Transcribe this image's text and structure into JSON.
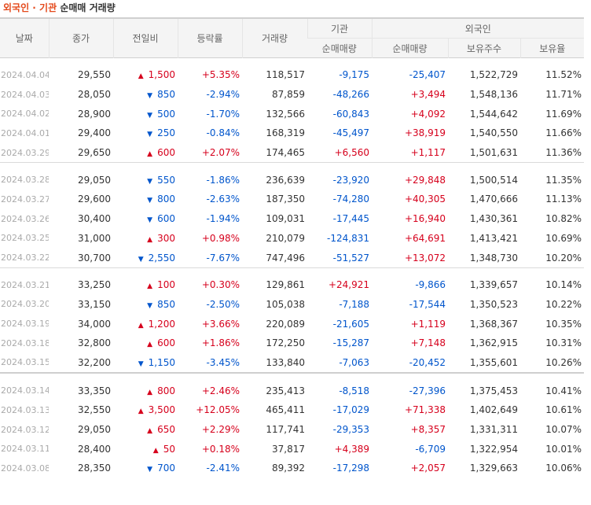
{
  "title": {
    "highlight": "외국인 · 기관",
    "rest": "순매매 거래량"
  },
  "headers": {
    "date": "날짜",
    "close": "종가",
    "change": "전일비",
    "rate": "등락률",
    "volume": "거래량",
    "inst": "기관",
    "foreign": "외국인",
    "inst_net": "순매매량",
    "foreign_net": "순매매량",
    "holdings": "보유주수",
    "ratio": "보유율"
  },
  "colors": {
    "up": "#d6001c",
    "down": "#0055cc",
    "title_accent": "#e4491b"
  },
  "icons": {
    "up": "up-triangle-icon",
    "down": "down-triangle-icon"
  },
  "groups": [
    [
      {
        "date": "2024.04.04",
        "close": "29,550",
        "dir": "up",
        "change": "1,500",
        "rate": "+5.35%",
        "volume": "118,517",
        "inst": "-9,175",
        "foreign": "-25,407",
        "holdings": "1,522,729",
        "ratio": "11.52%"
      },
      {
        "date": "2024.04.03",
        "close": "28,050",
        "dir": "down",
        "change": "850",
        "rate": "-2.94%",
        "volume": "87,859",
        "inst": "-48,266",
        "foreign": "+3,494",
        "holdings": "1,548,136",
        "ratio": "11.71%"
      },
      {
        "date": "2024.04.02",
        "close": "28,900",
        "dir": "down",
        "change": "500",
        "rate": "-1.70%",
        "volume": "132,566",
        "inst": "-60,843",
        "foreign": "+4,092",
        "holdings": "1,544,642",
        "ratio": "11.69%"
      },
      {
        "date": "2024.04.01",
        "close": "29,400",
        "dir": "down",
        "change": "250",
        "rate": "-0.84%",
        "volume": "168,319",
        "inst": "-45,497",
        "foreign": "+38,919",
        "holdings": "1,540,550",
        "ratio": "11.66%"
      },
      {
        "date": "2024.03.29",
        "close": "29,650",
        "dir": "up",
        "change": "600",
        "rate": "+2.07%",
        "volume": "174,465",
        "inst": "+6,560",
        "foreign": "+1,117",
        "holdings": "1,501,631",
        "ratio": "11.36%"
      }
    ],
    [
      {
        "date": "2024.03.28",
        "close": "29,050",
        "dir": "down",
        "change": "550",
        "rate": "-1.86%",
        "volume": "236,639",
        "inst": "-23,920",
        "foreign": "+29,848",
        "holdings": "1,500,514",
        "ratio": "11.35%"
      },
      {
        "date": "2024.03.27",
        "close": "29,600",
        "dir": "down",
        "change": "800",
        "rate": "-2.63%",
        "volume": "187,350",
        "inst": "-74,280",
        "foreign": "+40,305",
        "holdings": "1,470,666",
        "ratio": "11.13%"
      },
      {
        "date": "2024.03.26",
        "close": "30,400",
        "dir": "down",
        "change": "600",
        "rate": "-1.94%",
        "volume": "109,031",
        "inst": "-17,445",
        "foreign": "+16,940",
        "holdings": "1,430,361",
        "ratio": "10.82%"
      },
      {
        "date": "2024.03.25",
        "close": "31,000",
        "dir": "up",
        "change": "300",
        "rate": "+0.98%",
        "volume": "210,079",
        "inst": "-124,831",
        "foreign": "+64,691",
        "holdings": "1,413,421",
        "ratio": "10.69%"
      },
      {
        "date": "2024.03.22",
        "close": "30,700",
        "dir": "down",
        "change": "2,550",
        "rate": "-7.67%",
        "volume": "747,496",
        "inst": "-51,527",
        "foreign": "+13,072",
        "holdings": "1,348,730",
        "ratio": "10.20%"
      }
    ],
    [
      {
        "date": "2024.03.21",
        "close": "33,250",
        "dir": "up",
        "change": "100",
        "rate": "+0.30%",
        "volume": "129,861",
        "inst": "+24,921",
        "foreign": "-9,866",
        "holdings": "1,339,657",
        "ratio": "10.14%"
      },
      {
        "date": "2024.03.20",
        "close": "33,150",
        "dir": "down",
        "change": "850",
        "rate": "-2.50%",
        "volume": "105,038",
        "inst": "-7,188",
        "foreign": "-17,544",
        "holdings": "1,350,523",
        "ratio": "10.22%"
      },
      {
        "date": "2024.03.19",
        "close": "34,000",
        "dir": "up",
        "change": "1,200",
        "rate": "+3.66%",
        "volume": "220,089",
        "inst": "-21,605",
        "foreign": "+1,119",
        "holdings": "1,368,367",
        "ratio": "10.35%"
      },
      {
        "date": "2024.03.18",
        "close": "32,800",
        "dir": "up",
        "change": "600",
        "rate": "+1.86%",
        "volume": "172,250",
        "inst": "-15,287",
        "foreign": "+7,148",
        "holdings": "1,362,915",
        "ratio": "10.31%"
      },
      {
        "date": "2024.03.15",
        "close": "32,200",
        "dir": "down",
        "change": "1,150",
        "rate": "-3.45%",
        "volume": "133,840",
        "inst": "-7,063",
        "foreign": "-20,452",
        "holdings": "1,355,601",
        "ratio": "10.26%"
      }
    ],
    [
      {
        "date": "2024.03.14",
        "close": "33,350",
        "dir": "up",
        "change": "800",
        "rate": "+2.46%",
        "volume": "235,413",
        "inst": "-8,518",
        "foreign": "-27,396",
        "holdings": "1,375,453",
        "ratio": "10.41%"
      },
      {
        "date": "2024.03.13",
        "close": "32,550",
        "dir": "up",
        "change": "3,500",
        "rate": "+12.05%",
        "volume": "465,411",
        "inst": "-17,029",
        "foreign": "+71,338",
        "holdings": "1,402,649",
        "ratio": "10.61%"
      },
      {
        "date": "2024.03.12",
        "close": "29,050",
        "dir": "up",
        "change": "650",
        "rate": "+2.29%",
        "volume": "117,741",
        "inst": "-29,353",
        "foreign": "+8,357",
        "holdings": "1,331,311",
        "ratio": "10.07%"
      },
      {
        "date": "2024.03.11",
        "close": "28,400",
        "dir": "up",
        "change": "50",
        "rate": "+0.18%",
        "volume": "37,817",
        "inst": "+4,389",
        "foreign": "-6,709",
        "holdings": "1,322,954",
        "ratio": "10.01%"
      },
      {
        "date": "2024.03.08",
        "close": "28,350",
        "dir": "down",
        "change": "700",
        "rate": "-2.41%",
        "volume": "89,392",
        "inst": "-17,298",
        "foreign": "+2,057",
        "holdings": "1,329,663",
        "ratio": "10.06%"
      }
    ]
  ]
}
